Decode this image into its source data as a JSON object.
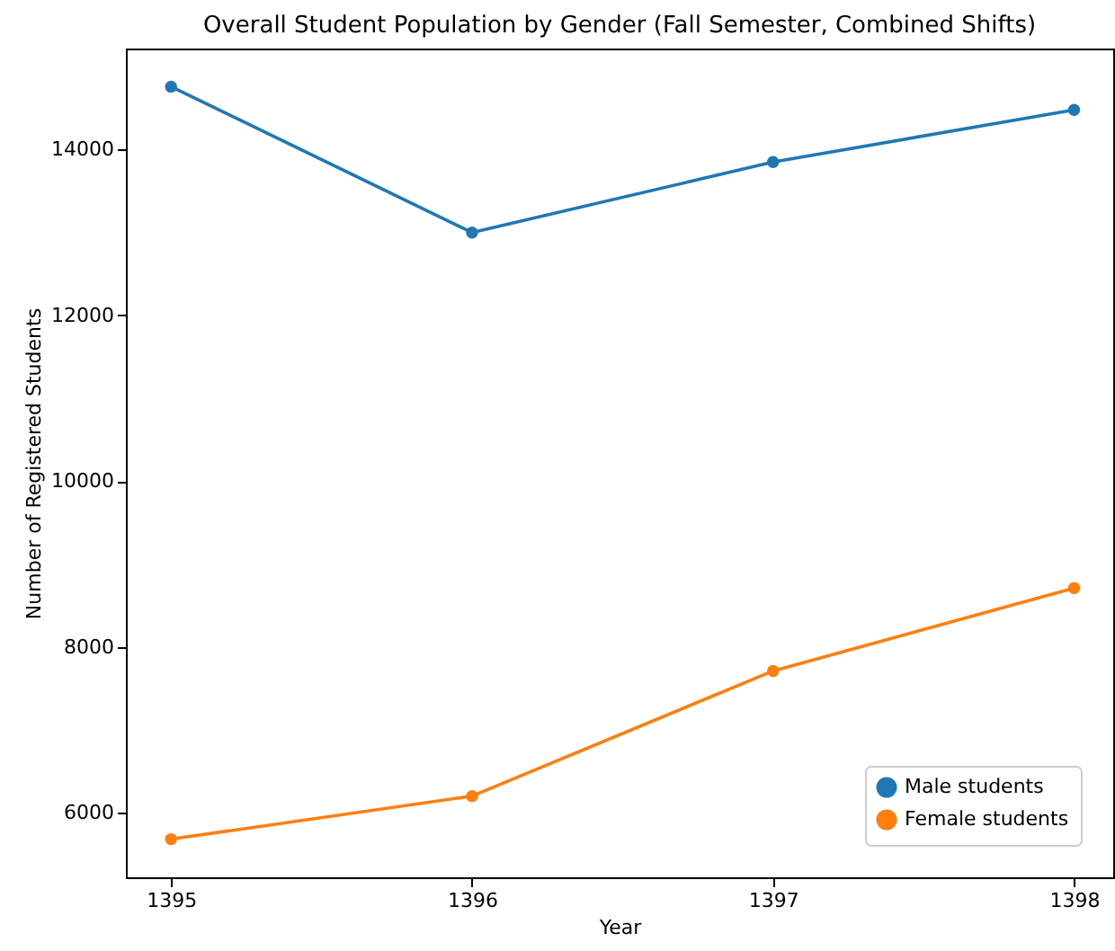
{
  "chart_data": {
    "type": "line",
    "title": "Overall Student Population by Gender (Fall Semester, Combined Shifts)",
    "xlabel": "Year",
    "ylabel": "Number of Registered Students",
    "x": [
      1395,
      1396,
      1397,
      1398
    ],
    "series": [
      {
        "name": "Male students",
        "color": "#1f77b4",
        "values": [
          14760,
          13000,
          13850,
          14480
        ]
      },
      {
        "name": "Female students",
        "color": "#ff7f0e",
        "values": [
          5680,
          6200,
          7710,
          8710
        ]
      }
    ],
    "xlim": [
      1394.85,
      1398.13
    ],
    "xticks": [
      1395,
      1396,
      1397,
      1398
    ],
    "ylim": [
      5220,
      15220
    ],
    "yticks": [
      6000,
      8000,
      10000,
      12000,
      14000
    ],
    "grid": false,
    "legend": "bottom right",
    "marker": "circle",
    "line_style": "solid"
  }
}
